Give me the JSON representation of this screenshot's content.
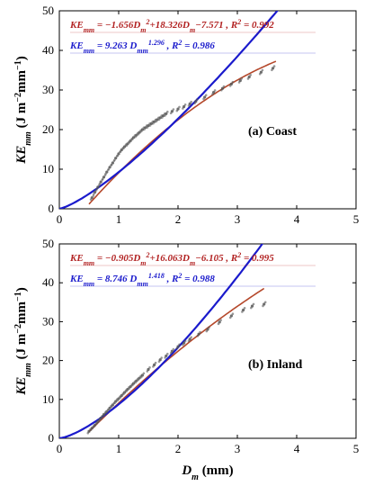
{
  "chart_data": [
    {
      "type": "scatter",
      "panel_label": "(a) Coast",
      "ylabel": "KE_mm (J m^-2 mm^-1)",
      "xlabel": "",
      "xlim": [
        0,
        5
      ],
      "ylim": [
        0,
        50
      ],
      "xticks": [
        "0",
        "1",
        "2",
        "3",
        "4",
        "5"
      ],
      "yticks": [
        "0",
        "10",
        "20",
        "30",
        "40",
        "50"
      ],
      "equations": [
        {
          "text": "KE_mm = −1.656D_m^2+18.326D_m−7.571 , R^2 = 0.992",
          "color": "#b22222"
        },
        {
          "text": "KE_mm = 9.263 D_mm^1.296 , R^2 = 0.986",
          "color": "#1a1acc"
        }
      ],
      "series": [
        {
          "type": "line",
          "color": "#b5482b",
          "coef": [
            -1.656,
            18.326,
            -7.571
          ],
          "range": [
            0.5,
            3.65
          ]
        },
        {
          "type": "line",
          "color": "#1a1acc",
          "power": [
            9.263,
            1.296
          ],
          "range": [
            0,
            3.8
          ]
        },
        {
          "type": "scatter",
          "color": "#555555",
          "x": [
            0.55,
            0.6,
            0.65,
            0.7,
            0.75,
            0.8,
            0.85,
            0.9,
            0.95,
            1.0,
            1.05,
            1.1,
            1.15,
            1.2,
            1.25,
            1.3,
            1.35,
            1.4,
            1.45,
            1.5,
            1.55,
            1.6,
            1.65,
            1.7,
            1.75,
            1.8,
            1.9,
            2.0,
            2.1,
            2.2,
            2.3,
            2.45,
            2.6,
            2.75,
            2.9,
            3.05,
            3.2,
            3.4,
            3.6
          ],
          "y": [
            2.8,
            4.2,
            5.5,
            6.8,
            8.0,
            9.3,
            10.5,
            11.6,
            12.8,
            13.9,
            14.9,
            15.7,
            16.4,
            17.2,
            18.0,
            18.6,
            19.3,
            20.0,
            20.5,
            21.0,
            21.5,
            22.0,
            22.5,
            23.0,
            23.5,
            24.0,
            24.6,
            25.2,
            25.8,
            26.5,
            27.1,
            28.2,
            29.4,
            30.4,
            31.5,
            32.4,
            33.3,
            34.5,
            35.5
          ]
        }
      ]
    },
    {
      "type": "scatter",
      "panel_label": "(b) Inland",
      "ylabel": "KE_mm (J m^-2 mm^-1)",
      "xlabel": "D_m (mm)",
      "xlim": [
        0,
        5
      ],
      "ylim": [
        0,
        50
      ],
      "xticks": [
        "0",
        "1",
        "2",
        "3",
        "4",
        "5"
      ],
      "yticks": [
        "0",
        "10",
        "20",
        "30",
        "40",
        "50"
      ],
      "equations": [
        {
          "text": "KE_mm = −0.905D_m^2+16.063D_m−6.105 , R^2 = 0.995",
          "color": "#b22222"
        },
        {
          "text": "KE_mm = 8.746 D_mm^1.418 , R^2 = 0.988",
          "color": "#1a1acc"
        }
      ],
      "series": [
        {
          "type": "line",
          "color": "#b5482b",
          "coef": [
            -0.905,
            16.063,
            -6.105
          ],
          "range": [
            0.5,
            3.45
          ]
        },
        {
          "type": "line",
          "color": "#1a1acc",
          "power": [
            8.746,
            1.418
          ],
          "range": [
            0,
            3.6
          ]
        },
        {
          "type": "scatter",
          "color": "#555555",
          "x": [
            0.5,
            0.55,
            0.6,
            0.65,
            0.7,
            0.75,
            0.8,
            0.85,
            0.9,
            0.95,
            1.0,
            1.05,
            1.1,
            1.15,
            1.2,
            1.25,
            1.3,
            1.35,
            1.4,
            1.5,
            1.6,
            1.7,
            1.8,
            1.9,
            2.0,
            2.1,
            2.2,
            2.35,
            2.5,
            2.7,
            2.9,
            3.1,
            3.25,
            3.45
          ],
          "y": [
            1.8,
            2.6,
            3.4,
            4.3,
            5.2,
            6.1,
            6.9,
            7.8,
            8.6,
            9.5,
            10.2,
            11.0,
            11.8,
            12.6,
            13.3,
            14.1,
            14.8,
            15.5,
            16.2,
            17.7,
            18.9,
            20.2,
            21.2,
            22.4,
            23.6,
            24.5,
            25.5,
            26.8,
            28.0,
            29.9,
            31.5,
            33.0,
            34.0,
            34.5
          ]
        }
      ]
    }
  ]
}
